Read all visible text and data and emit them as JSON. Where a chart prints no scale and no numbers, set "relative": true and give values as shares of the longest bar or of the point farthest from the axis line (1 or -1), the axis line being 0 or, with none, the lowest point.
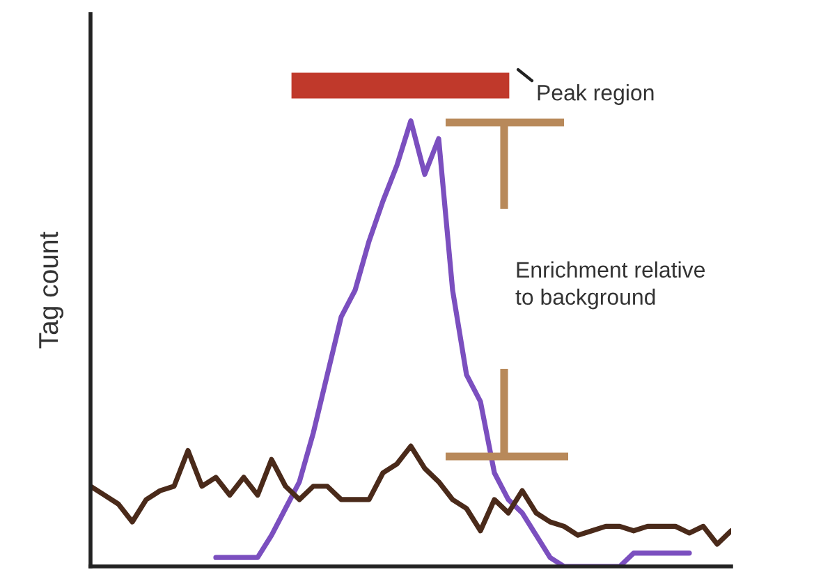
{
  "chart_data": {
    "type": "line",
    "relative": true,
    "ylabel": "Tag count",
    "grid": false,
    "legend": false,
    "marker": "none",
    "line_style": "solid",
    "annotations": [
      "Peak region",
      "Enrichment relative\nto background"
    ],
    "categories": [
      null,
      null,
      null,
      null,
      null,
      null,
      null,
      null,
      null,
      null,
      null,
      null,
      null,
      null,
      null,
      null,
      null,
      null,
      null,
      null,
      null,
      null,
      null,
      null,
      null,
      null,
      null,
      null,
      null,
      null,
      null,
      null,
      null,
      null,
      null,
      null,
      null,
      null,
      null,
      null,
      null,
      null,
      null,
      null,
      null,
      null,
      null
    ],
    "series": [
      {
        "color": "#7b4fbf",
        "values": [
          null,
          null,
          null,
          null,
          null,
          null,
          null,
          null,
          null,
          0.02,
          0.02,
          0.02,
          0.02,
          0.07,
          0.13,
          0.19,
          0.3,
          0.43,
          0.56,
          0.62,
          0.73,
          0.82,
          0.9,
          1.0,
          0.88,
          0.96,
          0.62,
          0.43,
          0.37,
          0.21,
          0.15,
          0.12,
          0.07,
          0.02,
          0,
          0,
          0,
          0,
          0,
          0.03,
          0.03,
          0.03,
          0.03,
          0.03,
          null,
          null,
          null
        ]
      },
      {
        "color": "#4a2a1a",
        "values": [
          0.18,
          0.16,
          0.14,
          0.1,
          0.15,
          0.17,
          0.18,
          0.26,
          0.18,
          0.2,
          0.16,
          0.2,
          0.16,
          0.24,
          0.18,
          0.15,
          0.18,
          0.18,
          0.15,
          0.15,
          0.15,
          0.21,
          0.23,
          0.27,
          0.22,
          0.19,
          0.15,
          0.13,
          0.08,
          0.15,
          0.12,
          0.17,
          0.12,
          0.1,
          0.09,
          0.07,
          0.08,
          0.09,
          0.09,
          0.08,
          0.09,
          0.09,
          0.09,
          0.075,
          0.09,
          0.05,
          0.08
        ]
      }
    ]
  }
}
